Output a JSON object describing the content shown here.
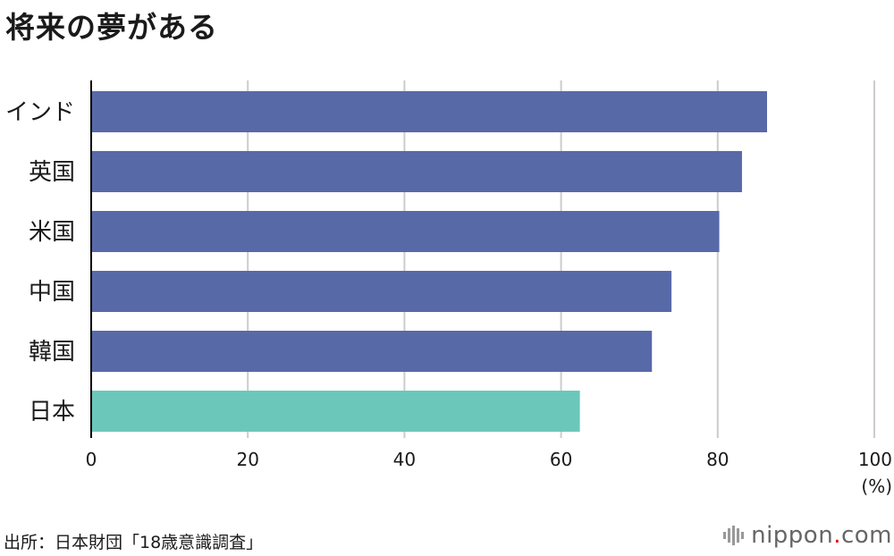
{
  "title": "将来の夢がある",
  "source": "出所：日本財団「18歳意識調査」",
  "logo": {
    "name": "nippon",
    "dot": ".",
    "suffix": "com"
  },
  "colors": {
    "default_bar": "#5869a8",
    "highlight_bar": "#6cc7bb",
    "grid": "#cccccc",
    "axis": "#000000"
  },
  "chart_data": {
    "type": "bar",
    "orientation": "horizontal",
    "title": "将来の夢がある",
    "categories": [
      "インド",
      "英国",
      "米国",
      "中国",
      "韓国",
      "日本"
    ],
    "values": [
      86.3,
      83.1,
      80.2,
      74.1,
      71.6,
      62.4
    ],
    "highlight": "日本",
    "xlim": [
      0,
      100
    ],
    "xticks": [
      0,
      20,
      40,
      60,
      80,
      100
    ],
    "xunit": "(%)",
    "grid": true
  }
}
